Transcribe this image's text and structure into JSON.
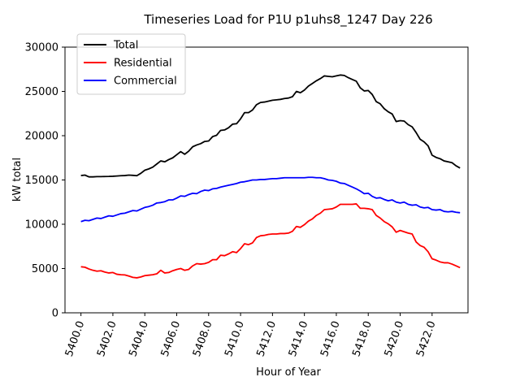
{
  "chart_data": {
    "type": "line",
    "title": "Timeseries Load for P1U p1uhs8_1247  Day 226",
    "xlabel": "Hour of Year",
    "ylabel": "kW total",
    "xlim": [
      5399.0,
      5424.25
    ],
    "ylim": [
      0,
      30000
    ],
    "xticks": [
      5400,
      5402,
      5404,
      5406,
      5408,
      5410,
      5412,
      5414,
      5416,
      5418,
      5420,
      5422
    ],
    "xtick_labels": [
      "5400.0",
      "5402.0",
      "5404.0",
      "5406.0",
      "5408.0",
      "5410.0",
      "5412.0",
      "5414.0",
      "5416.0",
      "5418.0",
      "5420.0",
      "5422.0"
    ],
    "yticks": [
      0,
      5000,
      10000,
      15000,
      20000,
      25000,
      30000
    ],
    "ytick_labels": [
      "0",
      "5000",
      "10000",
      "15000",
      "20000",
      "25000",
      "30000"
    ],
    "grid": false,
    "legend_position": "top-left",
    "x_start": 5400.0,
    "x_step": 0.25,
    "series": [
      {
        "name": "Total",
        "color": "#000000",
        "values": [
          15500,
          15550,
          15350,
          15350,
          15380,
          15380,
          15390,
          15400,
          15420,
          15450,
          15480,
          15500,
          15550,
          15520,
          15480,
          15750,
          16100,
          16250,
          16450,
          16800,
          17150,
          17050,
          17300,
          17500,
          17850,
          18200,
          17900,
          18250,
          18750,
          18950,
          19100,
          19350,
          19400,
          19900,
          20050,
          20600,
          20650,
          20900,
          21300,
          21350,
          21900,
          22600,
          22600,
          22900,
          23500,
          23750,
          23800,
          23900,
          24000,
          24050,
          24100,
          24200,
          24250,
          24400,
          25000,
          24850,
          25150,
          25600,
          25900,
          26200,
          26450,
          26750,
          26700,
          26650,
          26750,
          26850,
          26800,
          26550,
          26350,
          26150,
          25400,
          25050,
          25100,
          24650,
          23850,
          23600,
          23050,
          22700,
          22450,
          21600,
          21700,
          21650,
          21250,
          21000,
          20350,
          19600,
          19300,
          18850,
          17800,
          17550,
          17400,
          17150,
          17050,
          16950,
          16600,
          16350
        ]
      },
      {
        "name": "Residential",
        "color": "#ff0000",
        "values": [
          5200,
          5150,
          4950,
          4800,
          4700,
          4750,
          4600,
          4500,
          4550,
          4350,
          4300,
          4280,
          4150,
          4000,
          3950,
          4050,
          4200,
          4250,
          4300,
          4400,
          4800,
          4500,
          4550,
          4750,
          4900,
          5000,
          4800,
          4900,
          5300,
          5550,
          5500,
          5550,
          5700,
          6000,
          6000,
          6500,
          6450,
          6650,
          6900,
          6800,
          7250,
          7800,
          7700,
          7900,
          8500,
          8700,
          8750,
          8850,
          8900,
          8900,
          8950,
          8950,
          9000,
          9200,
          9750,
          9650,
          9950,
          10350,
          10600,
          11000,
          11250,
          11650,
          11700,
          11750,
          11950,
          12250,
          12250,
          12250,
          12250,
          12300,
          11800,
          11800,
          11750,
          11650,
          11000,
          10700,
          10300,
          10050,
          9700,
          9100,
          9300,
          9150,
          9000,
          8900,
          8000,
          7600,
          7400,
          6900,
          6100,
          5950,
          5750,
          5650,
          5650,
          5500,
          5300,
          5100
        ]
      },
      {
        "name": "Commercial",
        "color": "#0000ff",
        "values": [
          10300,
          10450,
          10400,
          10550,
          10700,
          10650,
          10800,
          10950,
          10900,
          11050,
          11200,
          11250,
          11400,
          11550,
          11500,
          11700,
          11900,
          12000,
          12150,
          12400,
          12450,
          12550,
          12750,
          12750,
          12950,
          13200,
          13150,
          13350,
          13500,
          13450,
          13700,
          13850,
          13800,
          14000,
          14050,
          14200,
          14300,
          14400,
          14500,
          14600,
          14750,
          14800,
          14900,
          15000,
          15000,
          15050,
          15050,
          15100,
          15150,
          15150,
          15200,
          15250,
          15250,
          15250,
          15250,
          15250,
          15250,
          15300,
          15300,
          15250,
          15250,
          15150,
          15000,
          14950,
          14850,
          14650,
          14600,
          14400,
          14200,
          14000,
          13750,
          13450,
          13500,
          13150,
          12950,
          13000,
          12800,
          12650,
          12750,
          12500,
          12400,
          12500,
          12250,
          12150,
          12200,
          11950,
          11850,
          11900,
          11650,
          11600,
          11650,
          11450,
          11400,
          11450,
          11350,
          11300
        ]
      }
    ]
  }
}
